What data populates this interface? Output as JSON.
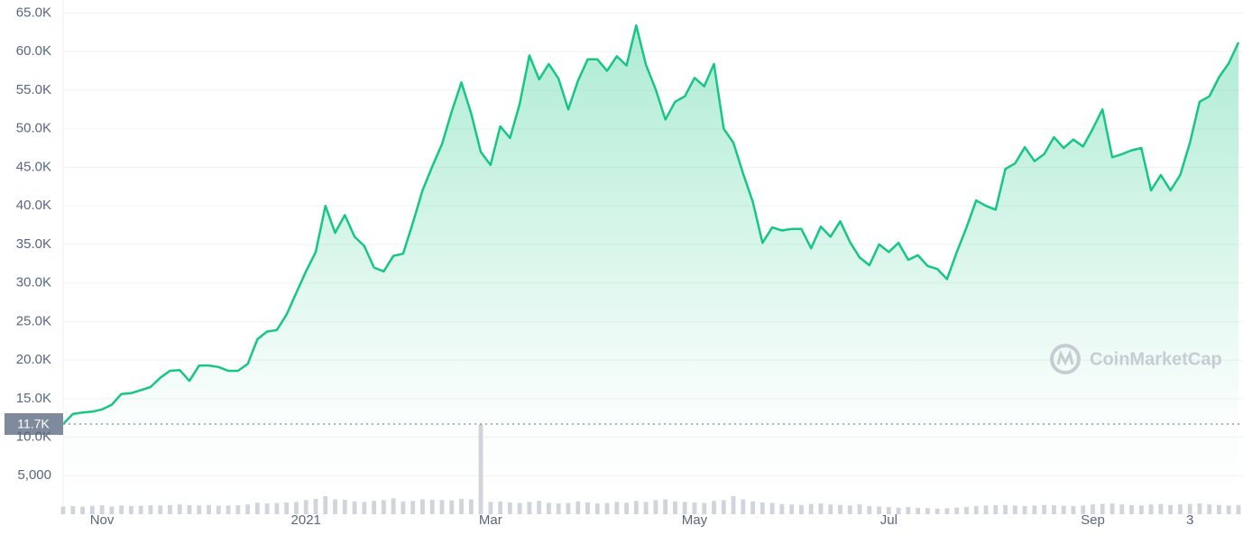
{
  "chart_data": {
    "type": "line",
    "categories": [
      null,
      null,
      null,
      null,
      "Nov",
      null,
      null,
      null,
      null,
      null,
      null,
      null,
      null,
      null,
      null,
      null,
      null,
      null,
      null,
      null,
      null,
      null,
      null,
      null,
      null,
      "2021",
      null,
      null,
      null,
      null,
      null,
      null,
      null,
      null,
      null,
      null,
      null,
      null,
      null,
      null,
      null,
      null,
      null,
      null,
      "Mar",
      null,
      null,
      null,
      null,
      null,
      null,
      null,
      null,
      null,
      null,
      null,
      null,
      null,
      null,
      null,
      null,
      null,
      null,
      null,
      null,
      "May",
      null,
      null,
      null,
      null,
      null,
      null,
      null,
      null,
      null,
      null,
      null,
      null,
      null,
      null,
      null,
      null,
      null,
      null,
      null,
      "Jul",
      null,
      null,
      null,
      null,
      null,
      null,
      null,
      null,
      null,
      null,
      null,
      null,
      null,
      null,
      null,
      null,
      null,
      null,
      null,
      null,
      "Sep",
      null,
      null,
      null,
      null,
      null,
      null,
      null,
      null,
      null,
      "3",
      null,
      null,
      null,
      null,
      null
    ],
    "series": [
      {
        "color": "#16c784",
        "values": [
          11700,
          13000,
          13200,
          13300,
          13600,
          14200,
          15600,
          15700,
          16100,
          16500,
          17700,
          18600,
          18700,
          17300,
          19300,
          19300,
          19100,
          18600,
          18600,
          19500,
          22700,
          23700,
          23900,
          25900,
          28700,
          31500,
          34000,
          40000,
          36500,
          38800,
          36000,
          34800,
          32000,
          31500,
          33500,
          33800,
          37800,
          42000,
          45100,
          48000,
          52200,
          56000,
          52000,
          47000,
          45300,
          50300,
          48800,
          53200,
          59500,
          56400,
          58400,
          56500,
          52500,
          56200,
          59000,
          59000,
          57500,
          59400,
          58200,
          63400,
          58300,
          55100,
          51200,
          53500,
          54200,
          56600,
          55500,
          58400,
          50000,
          48200,
          44200,
          40500,
          35200,
          37200,
          36800,
          37000,
          37000,
          34500,
          37300,
          36000,
          38000,
          35300,
          33300,
          32300,
          35000,
          34000,
          35200,
          33000,
          33600,
          32200,
          31800,
          30500,
          34000,
          37200,
          40700,
          40000,
          39500,
          44800,
          45500,
          47600,
          45800,
          46700,
          48900,
          47500,
          48600,
          47700,
          50000,
          52500,
          46300,
          46700,
          47200,
          47500,
          42000,
          44000,
          42000,
          44000,
          48200,
          53500,
          54200,
          56700,
          58500,
          61200
        ]
      },
      {
        "color": "#d1d5db",
        "type": "bar",
        "axis": "y2",
        "values": [
          30,
          32,
          30,
          33,
          35,
          30,
          34,
          32,
          33,
          35,
          34,
          36,
          38,
          35,
          34,
          36,
          33,
          34,
          35,
          38,
          45,
          42,
          44,
          46,
          48,
          55,
          60,
          70,
          58,
          56,
          50,
          48,
          52,
          55,
          62,
          50,
          52,
          58,
          56,
          55,
          54,
          60,
          58,
          350,
          48,
          50,
          46,
          44,
          48,
          52,
          45,
          42,
          44,
          50,
          46,
          42,
          44,
          48,
          45,
          52,
          48,
          55,
          58,
          50,
          48,
          46,
          44,
          52,
          55,
          70,
          58,
          50,
          46,
          44,
          40,
          38,
          36,
          40,
          42,
          38,
          36,
          34,
          38,
          32,
          30,
          28,
          26,
          28,
          25,
          24,
          22,
          24,
          26,
          28,
          32,
          34,
          35,
          36,
          34,
          32,
          34,
          36,
          35,
          33,
          32,
          34,
          38,
          40,
          42,
          38,
          36,
          34,
          38,
          40,
          36,
          38,
          40,
          42,
          38,
          36,
          34,
          36
        ]
      }
    ],
    "ylim": [
      0,
      66700
    ],
    "yticks": [
      {
        "value": 5000,
        "label": "5,000"
      },
      {
        "value": 10000,
        "label": "10.0K"
      },
      {
        "value": 15000,
        "label": "15.0K"
      },
      {
        "value": 20000,
        "label": "20.0K"
      },
      {
        "value": 25000,
        "label": "25.0K"
      },
      {
        "value": 30000,
        "label": "30.0K"
      },
      {
        "value": 35000,
        "label": "35.0K"
      },
      {
        "value": 40000,
        "label": "40.0K"
      },
      {
        "value": 45000,
        "label": "45.0K"
      },
      {
        "value": 50000,
        "label": "50.0K"
      },
      {
        "value": 55000,
        "label": "55.0K"
      },
      {
        "value": 60000,
        "label": "60.0K"
      },
      {
        "value": 65000,
        "label": "65.0K"
      }
    ],
    "y2lim": [
      0,
      2000
    ],
    "grid": true,
    "reference": {
      "value": 11700,
      "label": "11.7K"
    },
    "watermark": "CoinMarketCap"
  }
}
